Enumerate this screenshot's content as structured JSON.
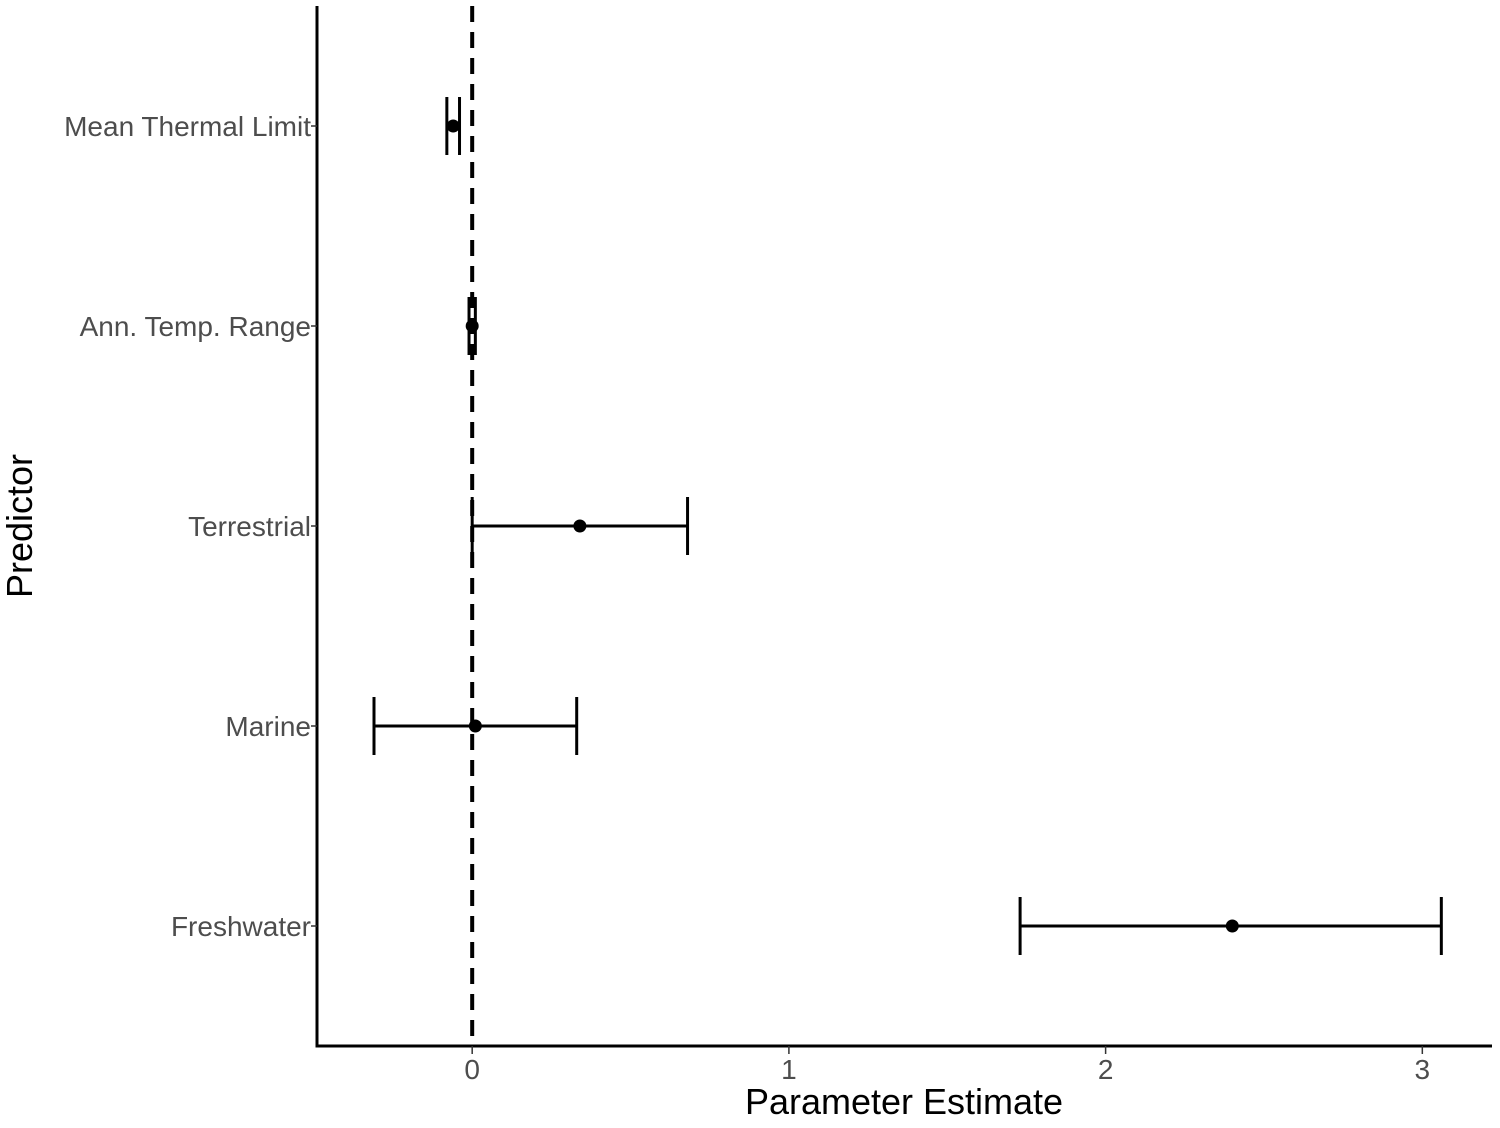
{
  "chart_data": {
    "type": "scatter",
    "xlabel": "Parameter Estimate",
    "ylabel": "Predictor",
    "xlim": [
      -0.49,
      3.22
    ],
    "xticks": [
      0,
      1,
      2,
      3
    ],
    "categories": [
      "Mean Thermal Limit",
      "Ann. Temp. Range",
      "Terrestrial",
      "Marine",
      "Freshwater"
    ],
    "estimates": [
      -0.06,
      0.0,
      0.34,
      0.01,
      2.4
    ],
    "lower": [
      -0.08,
      -0.01,
      0.0,
      -0.31,
      1.73
    ],
    "upper": [
      -0.04,
      0.01,
      0.68,
      0.33,
      3.06
    ],
    "reference_line": 0,
    "grid": false,
    "legend": "none"
  }
}
